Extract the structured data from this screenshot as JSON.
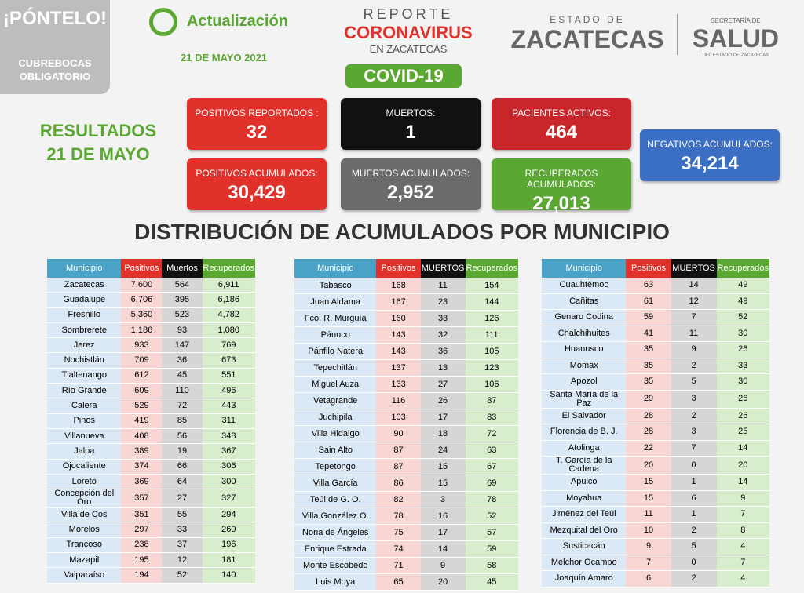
{
  "header": {
    "badge_title": "¡PÓNTELO!",
    "badge_text": "CUBREBOCAS OBLIGATORIO",
    "update_label": "Actualización",
    "update_date": "21 DE MAYO 2021",
    "report_top": "REPORTE",
    "report_main": "CORONAVIRUS",
    "report_sub": "EN ZACATECAS",
    "covid": "COVID-19",
    "state_top": "ESTADO DE",
    "state_name": "ZACATECAS",
    "health_top": "SECRETARÍA DE",
    "health_name": "SALUD",
    "health_sub": "DEL ESTADO DE ZACATECAS"
  },
  "results": {
    "label": "RESULTADOS",
    "date": "21 DE MAYO"
  },
  "boxes": [
    {
      "label": "POSITIVOS REPORTADOS :",
      "value": "32"
    },
    {
      "label": "MUERTOS:",
      "value": "1"
    },
    {
      "label": "PACIENTES ACTIVOS:",
      "value": "464"
    },
    {
      "label": "NEGATIVOS ACUMULADOS:",
      "value": "34,214"
    },
    {
      "label": "POSITIVOS ACUMULADOS:",
      "value": "30,429"
    },
    {
      "label": "MUERTOS ACUMULADOS:",
      "value": "2,952"
    },
    {
      "label": "RECUPERADOS ACUMULADOS:",
      "value": "27,013"
    }
  ],
  "section_title": "DISTRIBUCIÓN DE ACUMULADOS POR MUNICIPIO",
  "tables": [
    {
      "header": [
        "Municipio",
        "Positivos",
        "Muertos",
        "Recuperados"
      ],
      "rows": [
        [
          "Zacatecas",
          "7,600",
          "564",
          "6,911"
        ],
        [
          "Guadalupe",
          "6,706",
          "395",
          "6,186"
        ],
        [
          "Fresnillo",
          "5,360",
          "523",
          "4,782"
        ],
        [
          "Sombrerete",
          "1,186",
          "93",
          "1,080"
        ],
        [
          "Jerez",
          "933",
          "147",
          "769"
        ],
        [
          "Nochistlán",
          "709",
          "36",
          "673"
        ],
        [
          "Tlaltenango",
          "612",
          "45",
          "551"
        ],
        [
          "Río Grande",
          "609",
          "110",
          "496"
        ],
        [
          "Calera",
          "529",
          "72",
          "443"
        ],
        [
          "Pinos",
          "419",
          "85",
          "311"
        ],
        [
          "Villanueva",
          "408",
          "56",
          "348"
        ],
        [
          "Jalpa",
          "389",
          "19",
          "367"
        ],
        [
          "Ojocaliente",
          "374",
          "66",
          "306"
        ],
        [
          "Loreto",
          "369",
          "64",
          "300"
        ],
        [
          "Concepción del Oro",
          "357",
          "27",
          "327"
        ],
        [
          "Villa de Cos",
          "351",
          "55",
          "294"
        ],
        [
          "Morelos",
          "297",
          "33",
          "260"
        ],
        [
          "Trancoso",
          "238",
          "37",
          "196"
        ],
        [
          "Mazapil",
          "195",
          "12",
          "181"
        ],
        [
          "Valparaíso",
          "194",
          "52",
          "140"
        ]
      ]
    },
    {
      "header": [
        "Municipio",
        "Positivos",
        "MUERTOS",
        "Recuperados"
      ],
      "rows": [
        [
          "Tabasco",
          "168",
          "11",
          "154"
        ],
        [
          "Juan Aldama",
          "167",
          "23",
          "144"
        ],
        [
          "Fco. R. Murguía",
          "160",
          "33",
          "126"
        ],
        [
          "Pánuco",
          "143",
          "32",
          "111"
        ],
        [
          "Pánfilo Natera",
          "143",
          "36",
          "105"
        ],
        [
          "Tepechitlán",
          "137",
          "13",
          "123"
        ],
        [
          "Miguel Auza",
          "133",
          "27",
          "106"
        ],
        [
          "Vetagrande",
          "116",
          "26",
          "87"
        ],
        [
          "Juchipila",
          "103",
          "17",
          "83"
        ],
        [
          "Villa Hidalgo",
          "90",
          "18",
          "72"
        ],
        [
          "Sain Alto",
          "87",
          "24",
          "63"
        ],
        [
          "Tepetongo",
          "87",
          "15",
          "67"
        ],
        [
          "Villa García",
          "86",
          "15",
          "69"
        ],
        [
          "Teúl de G. O.",
          "82",
          "3",
          "78"
        ],
        [
          "Villa González O.",
          "78",
          "16",
          "52"
        ],
        [
          "Noria de Ángeles",
          "75",
          "17",
          "57"
        ],
        [
          "Enrique Estrada",
          "74",
          "14",
          "59"
        ],
        [
          "Monte Escobedo",
          "71",
          "9",
          "58"
        ],
        [
          "Luis Moya",
          "65",
          "20",
          "45"
        ]
      ]
    },
    {
      "header": [
        "Municipio",
        "Positivos",
        "MUERTOS",
        "Recuperados"
      ],
      "rows": [
        [
          "Cuauhtémoc",
          "63",
          "14",
          "49"
        ],
        [
          "Cañitas",
          "61",
          "12",
          "49"
        ],
        [
          "Genaro Codina",
          "59",
          "7",
          "52"
        ],
        [
          "Chalchihuites",
          "41",
          "11",
          "30"
        ],
        [
          "Huanusco",
          "35",
          "9",
          "26"
        ],
        [
          "Momax",
          "35",
          "2",
          "33"
        ],
        [
          "Apozol",
          "35",
          "5",
          "30"
        ],
        [
          "Santa María de la Paz",
          "29",
          "3",
          "26"
        ],
        [
          "El Salvador",
          "28",
          "2",
          "26"
        ],
        [
          "Florencia de B. J.",
          "28",
          "3",
          "25"
        ],
        [
          "Atolinga",
          "22",
          "7",
          "14"
        ],
        [
          "T. García de la Cadena",
          "20",
          "0",
          "20"
        ],
        [
          "Apulco",
          "15",
          "1",
          "14"
        ],
        [
          "Moyahua",
          "15",
          "6",
          "9"
        ],
        [
          "Jiménez del Teúl",
          "11",
          "1",
          "7"
        ],
        [
          "Mezquital del Oro",
          "10",
          "2",
          "8"
        ],
        [
          "Susticacán",
          "9",
          "5",
          "4"
        ],
        [
          "Melchor Ocampo",
          "7",
          "0",
          "7"
        ],
        [
          "Joaquín Amaro",
          "6",
          "2",
          "4"
        ]
      ]
    }
  ]
}
